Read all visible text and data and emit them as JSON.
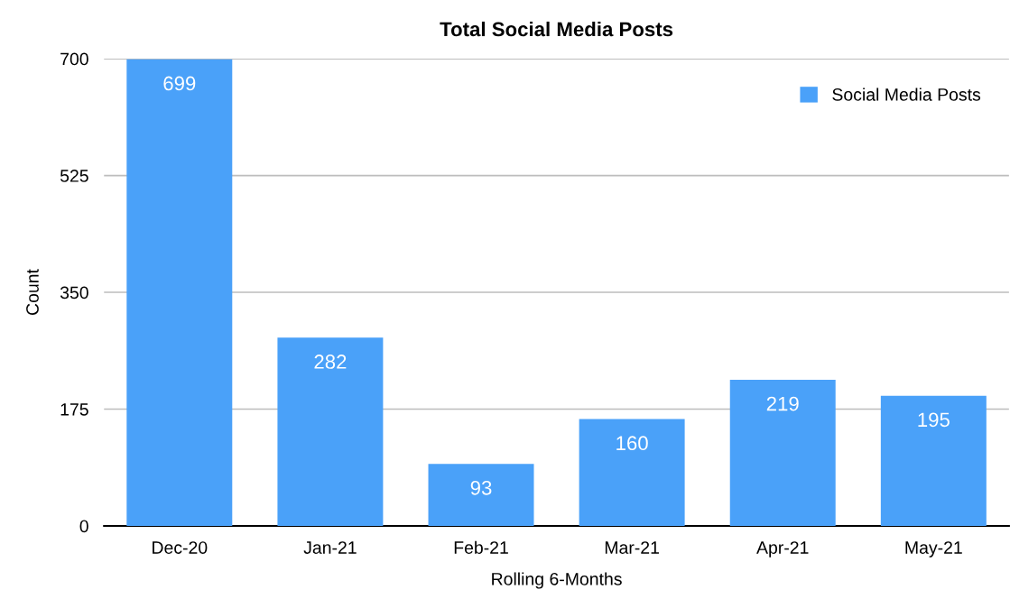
{
  "chart_data": {
    "type": "bar",
    "title": "Total Social Media Posts",
    "xlabel": "Rolling 6-Months",
    "ylabel": "Count",
    "categories": [
      "Dec-20",
      "Jan-21",
      "Feb-21",
      "Mar-21",
      "Apr-21",
      "May-21"
    ],
    "series": [
      {
        "name": "Social Media Posts",
        "color": "#4aa1f9",
        "values": [
          699,
          282,
          93,
          160,
          219,
          195
        ]
      }
    ],
    "ylim": [
      0,
      700
    ],
    "yticks": [
      0,
      175,
      350,
      525,
      700
    ],
    "grid": "y",
    "legend": "top right",
    "data_labels": true
  }
}
